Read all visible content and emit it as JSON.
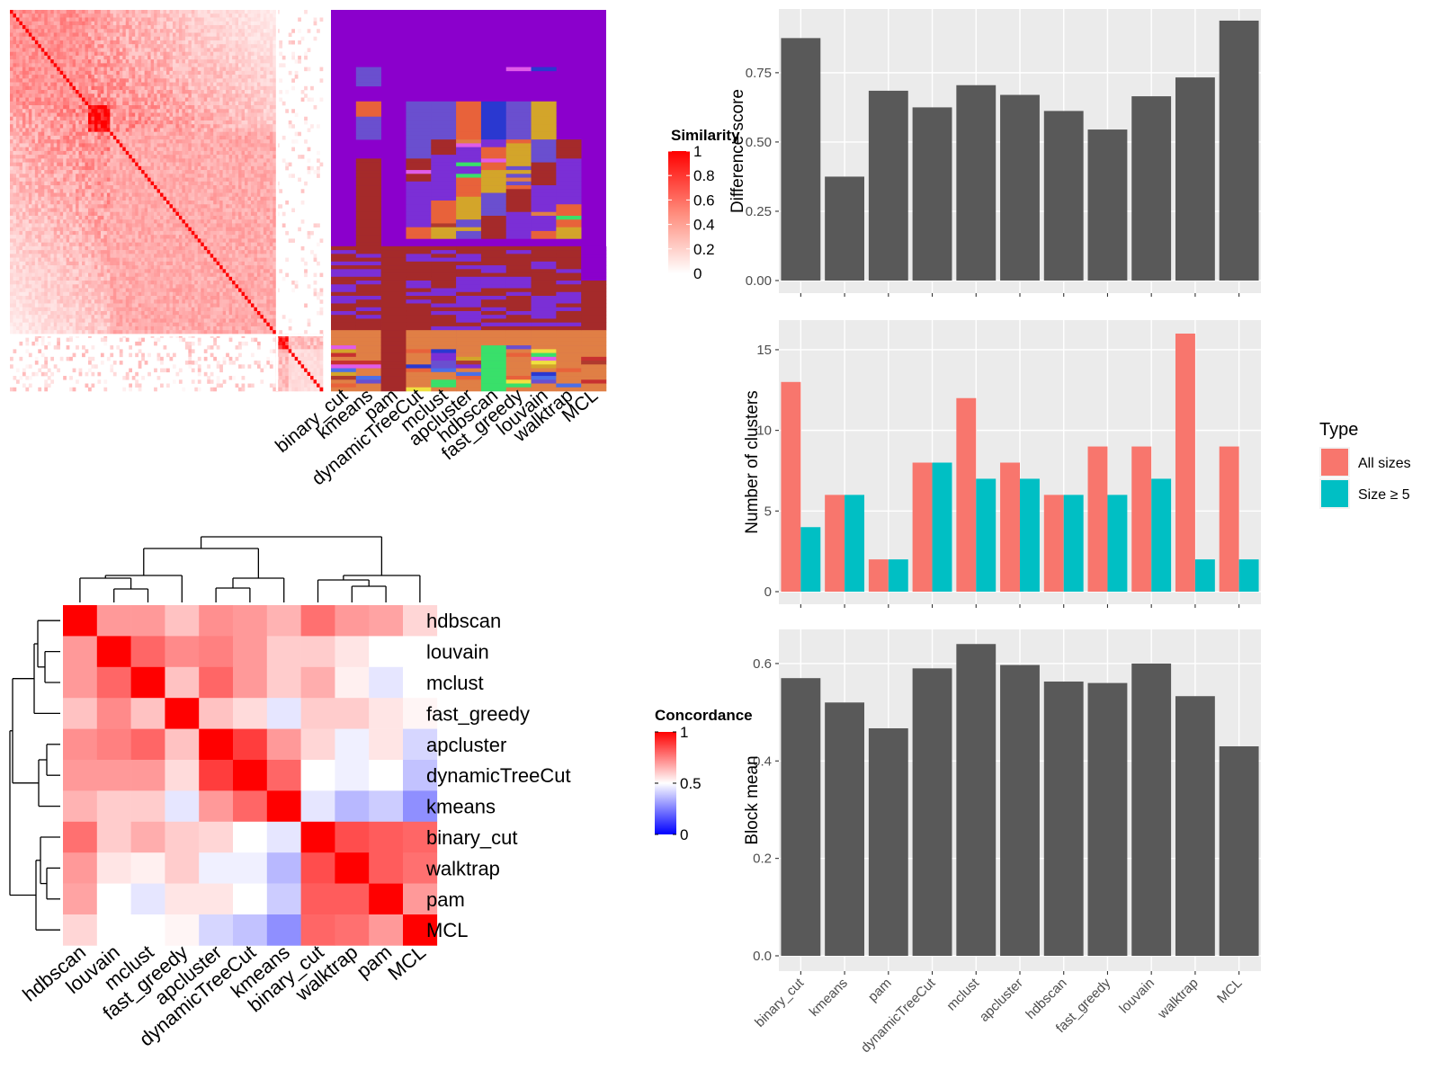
{
  "methods": [
    "binary_cut",
    "kmeans",
    "pam",
    "dynamicTreeCut",
    "mclust",
    "apcluster",
    "hdbscan",
    "fast_greedy",
    "louvain",
    "walktrap",
    "MCL"
  ],
  "chart_data": [
    {
      "type": "heatmap",
      "id": "similarity-heatmap",
      "legend_title": "Similarity",
      "legend_ticks": [
        "1",
        "0.8",
        "0.6",
        "0.4",
        "0.2",
        "0"
      ],
      "colors": {
        "high": "#ff0000",
        "low": "#ffffff"
      },
      "column_labels": [
        "binary_cut",
        "kmeans",
        "pam",
        "dynamicTreeCut",
        "mclust",
        "apcluster",
        "hdbscan",
        "fast_greedy",
        "louvain",
        "walktrap",
        "MCL"
      ],
      "annotation_base_color": "#8b00cc"
    },
    {
      "type": "bar",
      "id": "difference-score",
      "categories": [
        "binary_cut",
        "kmeans",
        "pam",
        "dynamicTreeCut",
        "mclust",
        "apcluster",
        "hdbscan",
        "fast_greedy",
        "louvain",
        "walktrap",
        "MCL"
      ],
      "values": [
        0.875,
        0.375,
        0.685,
        0.625,
        0.705,
        0.67,
        0.612,
        0.545,
        0.665,
        0.733,
        0.938
      ],
      "ylabel": "Difference score",
      "ylim": [
        0,
        0.98
      ],
      "yticks": [
        "0.00",
        "0.25",
        "0.50",
        "0.75"
      ],
      "bar_color": "#595959"
    },
    {
      "type": "bar",
      "id": "number-of-clusters",
      "categories": [
        "binary_cut",
        "kmeans",
        "pam",
        "dynamicTreeCut",
        "mclust",
        "apcluster",
        "hdbscan",
        "fast_greedy",
        "louvain",
        "walktrap",
        "MCL"
      ],
      "series": [
        {
          "name": "All sizes",
          "values": [
            13,
            6,
            2,
            8,
            12,
            8,
            6,
            9,
            9,
            16,
            9
          ],
          "color": "#f8766d"
        },
        {
          "name": "Size ≥ 5",
          "values": [
            4,
            6,
            2,
            8,
            7,
            7,
            6,
            6,
            7,
            2,
            2
          ],
          "color": "#00bfc4"
        }
      ],
      "ylabel": "Number of clusters",
      "ylim": [
        0,
        16.8
      ],
      "yticks": [
        "0",
        "5",
        "10",
        "15"
      ],
      "legend_title": "Type",
      "legend_placement": "right"
    },
    {
      "type": "bar",
      "id": "block-mean",
      "categories": [
        "binary_cut",
        "kmeans",
        "pam",
        "dynamicTreeCut",
        "mclust",
        "apcluster",
        "hdbscan",
        "fast_greedy",
        "louvain",
        "walktrap",
        "MCL"
      ],
      "values": [
        0.57,
        0.52,
        0.467,
        0.59,
        0.64,
        0.597,
        0.563,
        0.56,
        0.6,
        0.533,
        0.43
      ],
      "ylabel": "Block mean",
      "ylim": [
        0,
        0.67
      ],
      "yticks": [
        "0.0",
        "0.2",
        "0.4",
        "0.6"
      ],
      "bar_color": "#595959"
    },
    {
      "type": "heatmap",
      "id": "concordance-heatmap",
      "legend_title": "Concordance",
      "legend_ticks": [
        "1",
        "0.5",
        "0"
      ],
      "labels": [
        "hdbscan",
        "louvain",
        "mclust",
        "fast_greedy",
        "apcluster",
        "dynamicTreeCut",
        "kmeans",
        "binary_cut",
        "walktrap",
        "pam",
        "MCL"
      ],
      "matrix": [
        [
          1,
          0.7,
          0.7,
          0.62,
          0.72,
          0.7,
          0.65,
          0.78,
          0.7,
          0.68,
          0.58
        ],
        [
          0.7,
          1,
          0.8,
          0.73,
          0.75,
          0.7,
          0.6,
          0.6,
          0.55,
          0.5,
          0.5
        ],
        [
          0.7,
          0.8,
          1,
          0.62,
          0.8,
          0.7,
          0.6,
          0.66,
          0.53,
          0.45,
          0.5
        ],
        [
          0.62,
          0.73,
          0.62,
          1,
          0.62,
          0.57,
          0.45,
          0.6,
          0.6,
          0.55,
          0.52
        ],
        [
          0.72,
          0.75,
          0.8,
          0.62,
          1,
          0.88,
          0.7,
          0.58,
          0.47,
          0.55,
          0.42
        ],
        [
          0.7,
          0.7,
          0.7,
          0.57,
          0.88,
          1,
          0.8,
          0.5,
          0.47,
          0.5,
          0.38
        ],
        [
          0.65,
          0.6,
          0.6,
          0.45,
          0.7,
          0.8,
          1,
          0.45,
          0.36,
          0.4,
          0.28
        ],
        [
          0.78,
          0.6,
          0.66,
          0.6,
          0.58,
          0.5,
          0.45,
          1,
          0.85,
          0.82,
          0.8
        ],
        [
          0.7,
          0.55,
          0.53,
          0.6,
          0.47,
          0.47,
          0.36,
          0.85,
          1,
          0.82,
          0.78
        ],
        [
          0.68,
          0.5,
          0.45,
          0.55,
          0.55,
          0.5,
          0.4,
          0.82,
          0.82,
          1,
          0.7
        ],
        [
          0.58,
          0.5,
          0.5,
          0.52,
          0.42,
          0.38,
          0.28,
          0.8,
          0.78,
          0.7,
          1
        ]
      ]
    }
  ]
}
